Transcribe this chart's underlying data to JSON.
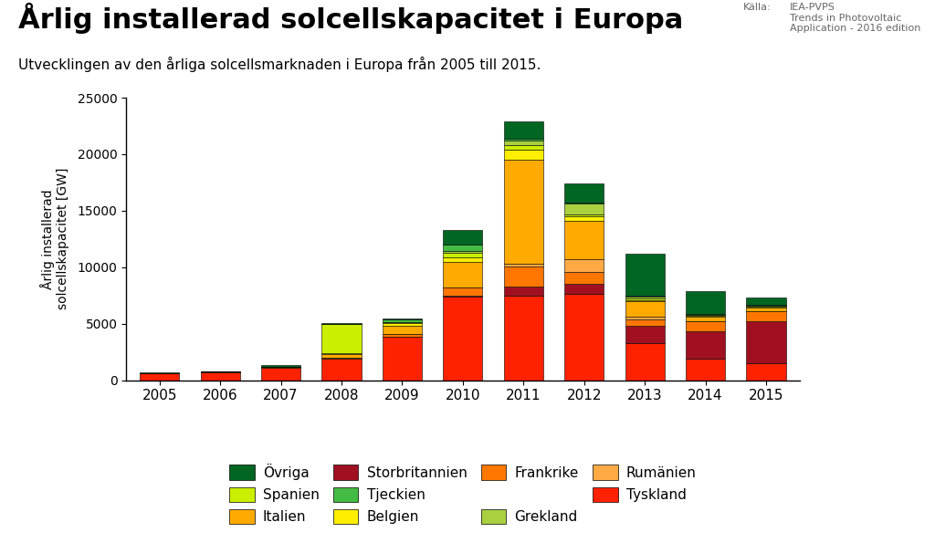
{
  "title": "Årlig installerad solcellskapacitet i Europa",
  "subtitle": "Utvecklingen av den årliga solcellsmarknaden i Europa från 2005 till 2015.",
  "ylabel": "Årlig installerad\nsolcellskapacitet [GW]",
  "source_label": "Källa:",
  "source_text": "IEA-PVPS\nTrends in Photovoltaic\nApplication - 2016 edition",
  "years": [
    2005,
    2006,
    2007,
    2008,
    2009,
    2010,
    2011,
    2012,
    2013,
    2014,
    2015
  ],
  "series": {
    "Tyskland": [
      600,
      700,
      1100,
      1900,
      3800,
      7400,
      7500,
      7600,
      3300,
      1900,
      1500
    ],
    "Storbritannien": [
      10,
      10,
      10,
      10,
      10,
      100,
      800,
      900,
      1500,
      2400,
      3700
    ],
    "Frankrike": [
      10,
      10,
      50,
      60,
      250,
      700,
      1800,
      1100,
      600,
      900,
      900
    ],
    "Rumänien": [
      0,
      0,
      0,
      0,
      0,
      0,
      200,
      1100,
      200,
      50,
      30
    ],
    "Italien": [
      10,
      10,
      40,
      350,
      730,
      2300,
      9200,
      3400,
      1400,
      380,
      300
    ],
    "Belgien": [
      0,
      0,
      0,
      50,
      290,
      400,
      900,
      400,
      100,
      100,
      100
    ],
    "Spanien": [
      5,
      5,
      5,
      2600,
      70,
      370,
      400,
      200,
      100,
      50,
      50
    ],
    "Grekland": [
      0,
      0,
      0,
      0,
      0,
      150,
      400,
      900,
      200,
      10,
      10
    ],
    "Tjeckien": [
      0,
      0,
      0,
      0,
      200,
      600,
      200,
      100,
      80,
      50,
      50
    ],
    "Övriga": [
      50,
      50,
      100,
      100,
      100,
      1300,
      1500,
      1700,
      3700,
      2000,
      700
    ]
  },
  "colors": {
    "Tyskland": "#ff2200",
    "Storbritannien": "#a01020",
    "Frankrike": "#ff7700",
    "Rumänien": "#ffaa44",
    "Italien": "#ffaa00",
    "Belgien": "#ffee00",
    "Spanien": "#ccee00",
    "Grekland": "#aad040",
    "Tjeckien": "#44bb44",
    "Övriga": "#006622"
  },
  "ylim": [
    0,
    25000
  ],
  "yticks": [
    0,
    5000,
    10000,
    15000,
    20000,
    25000
  ],
  "background_color": "#ffffff",
  "title_fontsize": 22,
  "subtitle_fontsize": 11,
  "ylabel_fontsize": 10
}
